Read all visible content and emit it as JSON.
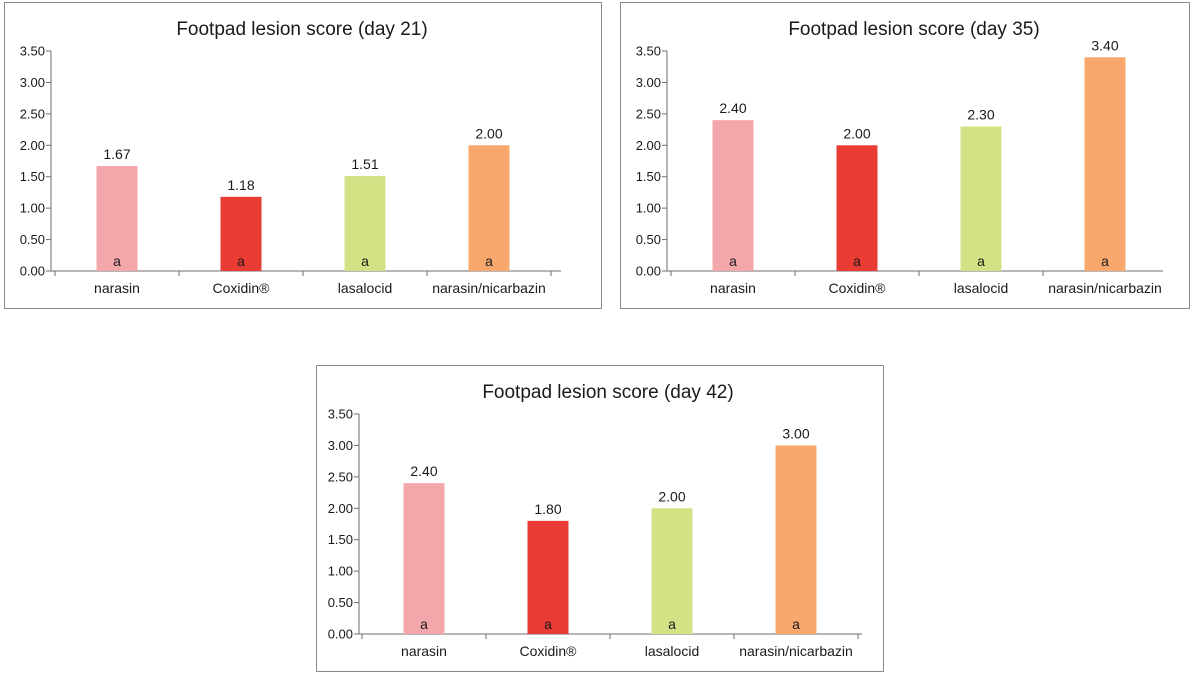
{
  "chart_data": [
    {
      "type": "bar",
      "title": "Footpad lesion score (day 21)",
      "categories": [
        "narasin",
        "Coxidin®",
        "lasalocid",
        "narasin/nicarbazin"
      ],
      "values": [
        1.67,
        1.18,
        1.51,
        2.0
      ],
      "value_labels": [
        "1.67",
        "1.18",
        "1.51",
        "2.00"
      ],
      "significance": [
        "a",
        "a",
        "a",
        "a"
      ],
      "colors": [
        "#f4a7ab",
        "#e83c34",
        "#d4e285",
        "#f8a86c"
      ],
      "ylim": [
        0,
        3.5
      ],
      "yticks": [
        "0.00",
        "0.50",
        "1.00",
        "1.50",
        "2.00",
        "2.50",
        "3.00",
        "3.50"
      ],
      "xlabel": "",
      "ylabel": "",
      "grid": false
    },
    {
      "type": "bar",
      "title": "Footpad lesion score (day 35)",
      "categories": [
        "narasin",
        "Coxidin®",
        "lasalocid",
        "narasin/nicarbazin"
      ],
      "values": [
        2.4,
        2.0,
        2.3,
        3.4
      ],
      "value_labels": [
        "2.40",
        "2.00",
        "2.30",
        "3.40"
      ],
      "significance": [
        "a",
        "a",
        "a",
        "a"
      ],
      "colors": [
        "#f4a7ab",
        "#e83c34",
        "#d4e285",
        "#f8a86c"
      ],
      "ylim": [
        0,
        3.5
      ],
      "yticks": [
        "0.00",
        "0.50",
        "1.00",
        "1.50",
        "2.00",
        "2.50",
        "3.00",
        "3.50"
      ],
      "xlabel": "",
      "ylabel": "",
      "grid": false
    },
    {
      "type": "bar",
      "title": "Footpad lesion score (day 42)",
      "categories": [
        "narasin",
        "Coxidin®",
        "lasalocid",
        "narasin/nicarbazin"
      ],
      "values": [
        2.4,
        1.8,
        2.0,
        3.0
      ],
      "value_labels": [
        "2.40",
        "1.80",
        "2.00",
        "3.00"
      ],
      "significance": [
        "a",
        "a",
        "a",
        "a"
      ],
      "colors": [
        "#f4a7ab",
        "#e83c34",
        "#d4e285",
        "#f8a86c"
      ],
      "ylim": [
        0,
        3.5
      ],
      "yticks": [
        "0.00",
        "0.50",
        "1.00",
        "1.50",
        "2.00",
        "2.50",
        "3.00",
        "3.50"
      ],
      "xlabel": "",
      "ylabel": "",
      "grid": false
    }
  ]
}
